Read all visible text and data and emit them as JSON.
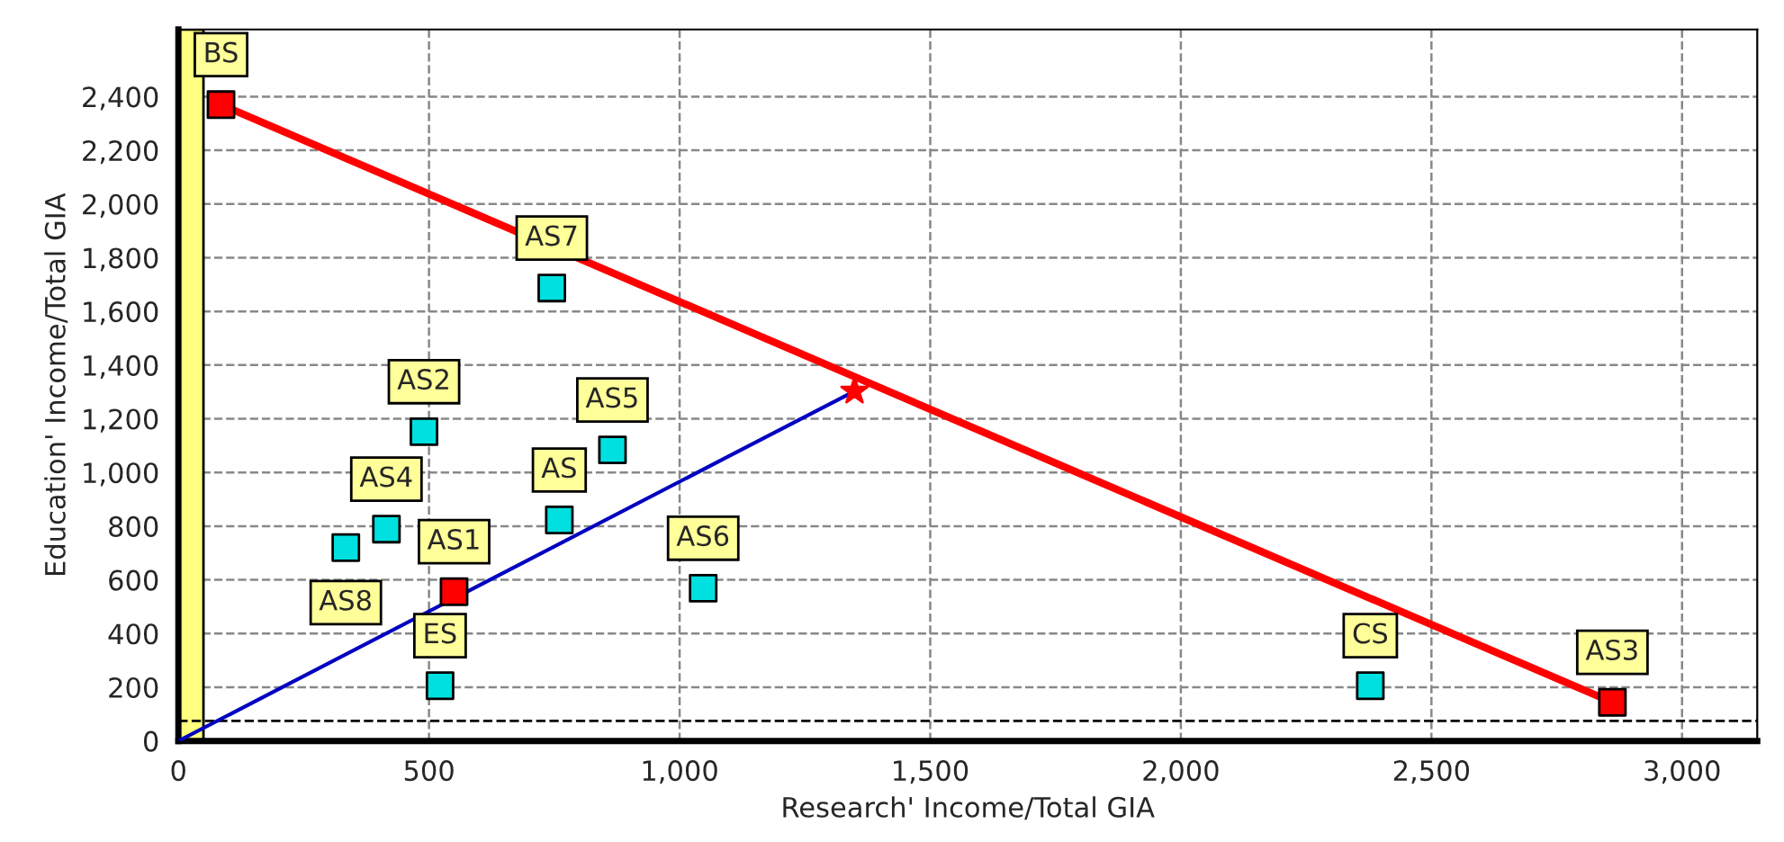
{
  "chart_data": {
    "type": "scatter",
    "xlabel": "Research' Income/Total GIA",
    "ylabel": "Education' Income/Total GIA",
    "xlim": [
      0,
      3150
    ],
    "ylim": [
      0,
      2650
    ],
    "xticks": [
      0,
      500,
      {
        "value": 1000,
        "label": "1,000"
      },
      {
        "value": 1500,
        "label": "1,500"
      },
      {
        "value": 2000,
        "label": "2,000"
      },
      {
        "value": 2500,
        "label": "2,500"
      },
      {
        "value": 3000,
        "label": "3,000"
      }
    ],
    "yticks": [
      0,
      200,
      400,
      600,
      800,
      {
        "value": 1000,
        "label": "1,000"
      },
      {
        "value": 1200,
        "label": "1,200"
      },
      {
        "value": 1400,
        "label": "1,400"
      },
      {
        "value": 1600,
        "label": "1,600"
      },
      {
        "value": 1800,
        "label": "1,800"
      },
      {
        "value": 2000,
        "label": "2,000"
      },
      {
        "value": 2200,
        "label": "2,200"
      },
      {
        "value": 2400,
        "label": "2,400"
      }
    ],
    "grid": true,
    "marker": "square",
    "bands": [
      {
        "axis": "x",
        "from": 0,
        "to": 50,
        "color": "#ffff80"
      }
    ],
    "ref_lines": [
      {
        "axis": "y",
        "value": 75,
        "color": "#000000",
        "line_style": "dashed"
      }
    ],
    "series": [
      {
        "type": "line",
        "color": "#ff0000",
        "x": [
          85,
          2861
        ],
        "values": [
          2370,
          144
        ],
        "marker": "none"
      },
      {
        "type": "line",
        "color": "#0000c0",
        "x": [
          0,
          1349
        ],
        "values": [
          0,
          1303
        ],
        "marker": "none"
      },
      {
        "color": "#ff0000",
        "x": [
          1349
        ],
        "values": [
          1303
        ],
        "marker": "star"
      },
      {
        "color": "#ff0000",
        "x": [
          85,
          550,
          2861
        ],
        "values": [
          2370,
          556,
          144
        ]
      },
      {
        "color": "#00e0e0",
        "x": [
          745,
          490,
          415,
          334,
          522,
          760,
          866,
          1047,
          2378
        ],
        "values": [
          1687,
          1152,
          789,
          720,
          206,
          823,
          1084,
          569,
          206
        ]
      }
    ],
    "annotations": [
      {
        "text": "BS",
        "x": 85,
        "y": 2370
      },
      {
        "text": "AS1",
        "x": 550,
        "y": 556
      },
      {
        "text": "AS3",
        "x": 2861,
        "y": 144
      },
      {
        "text": "AS7",
        "x": 745,
        "y": 1687
      },
      {
        "text": "AS2",
        "x": 490,
        "y": 1152
      },
      {
        "text": "AS4",
        "x": 415,
        "y": 789
      },
      {
        "text": "AS8",
        "x": 334,
        "y": 720
      },
      {
        "text": "ES",
        "x": 522,
        "y": 206
      },
      {
        "text": "AS",
        "x": 760,
        "y": 823
      },
      {
        "text": "AS5",
        "x": 866,
        "y": 1084
      },
      {
        "text": "AS6",
        "x": 1047,
        "y": 569
      },
      {
        "text": "CS",
        "x": 2378,
        "y": 206
      }
    ]
  }
}
